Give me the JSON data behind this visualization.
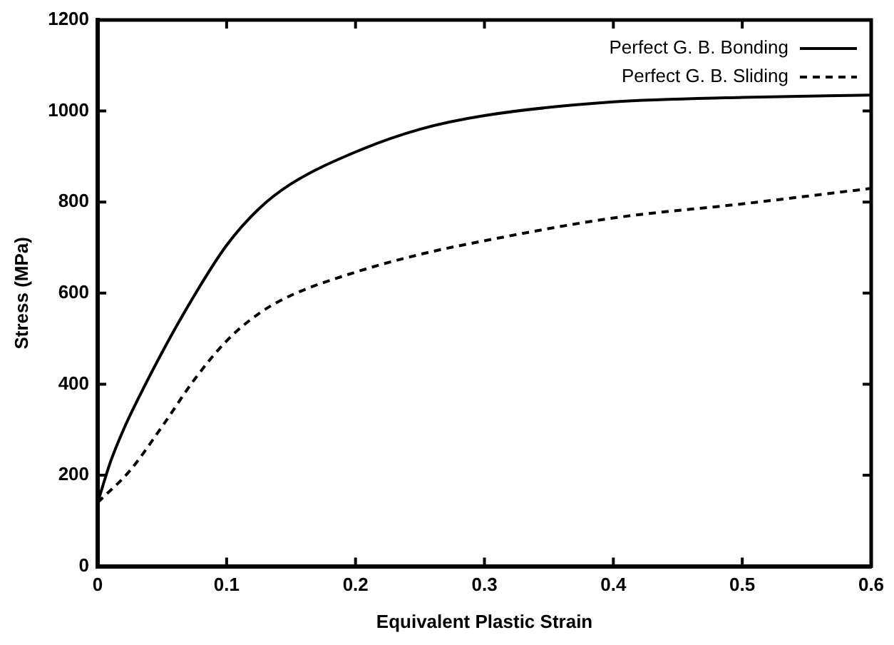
{
  "chart_data": {
    "type": "line",
    "xlabel": "Equivalent Plastic Strain",
    "ylabel": "Stress (MPa)",
    "xlim": [
      0,
      0.6
    ],
    "xticks": [
      0,
      0.1,
      0.2,
      0.3,
      0.4,
      0.5,
      0.6
    ],
    "ylim": [
      0,
      1200
    ],
    "yticks": [
      0,
      200,
      400,
      600,
      800,
      1000,
      1200
    ],
    "legend": "top right",
    "marker": "none",
    "series": [
      {
        "name": "Perfect G. B. Bonding",
        "color": "#000000",
        "line_style": "solid",
        "x": [
          0,
          0.01,
          0.02,
          0.03,
          0.05,
          0.075,
          0.1,
          0.125,
          0.15,
          0.2,
          0.25,
          0.3,
          0.4,
          0.5,
          0.6
        ],
        "values": [
          140,
          230,
          300,
          360,
          470,
          595,
          705,
          785,
          840,
          910,
          960,
          990,
          1020,
          1030,
          1035
        ]
      },
      {
        "name": "Perfect G. B. Sliding",
        "color": "#000000",
        "line_style": "dashed",
        "x": [
          0,
          0.025,
          0.05,
          0.075,
          0.1,
          0.125,
          0.15,
          0.2,
          0.25,
          0.3,
          0.4,
          0.5,
          0.6
        ],
        "values": [
          140,
          210,
          307,
          410,
          495,
          555,
          595,
          646,
          685,
          715,
          765,
          796,
          830
        ]
      }
    ]
  }
}
